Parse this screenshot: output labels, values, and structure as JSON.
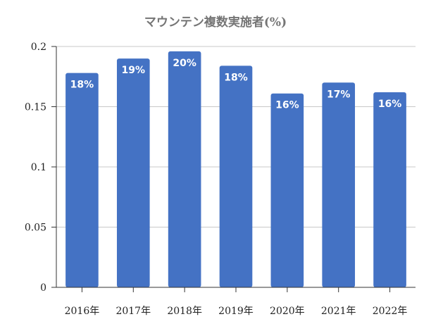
{
  "chart_data": {
    "type": "bar",
    "title": "マウンテン複数実施者(%)",
    "categories": [
      "2016年",
      "2017年",
      "2018年",
      "2019年",
      "2020年",
      "2021年",
      "2022年"
    ],
    "values": [
      0.178,
      0.19,
      0.196,
      0.184,
      0.161,
      0.17,
      0.162
    ],
    "data_labels": [
      "18%",
      "19%",
      "20%",
      "18%",
      "16%",
      "17%",
      "16%"
    ],
    "ylim": [
      0,
      0.2
    ],
    "yticks": [
      0,
      0.05,
      0.1,
      0.15,
      0.2
    ],
    "ytick_labels": [
      "0",
      "0.05",
      "0.1",
      "0.15",
      "0.2"
    ],
    "grid": true,
    "legend": "none",
    "xlabel": "",
    "ylabel": "",
    "colors": {
      "bar": "#4472c4",
      "grid": "#c8c8c8",
      "axis": "#333333",
      "title": "#757575"
    }
  }
}
